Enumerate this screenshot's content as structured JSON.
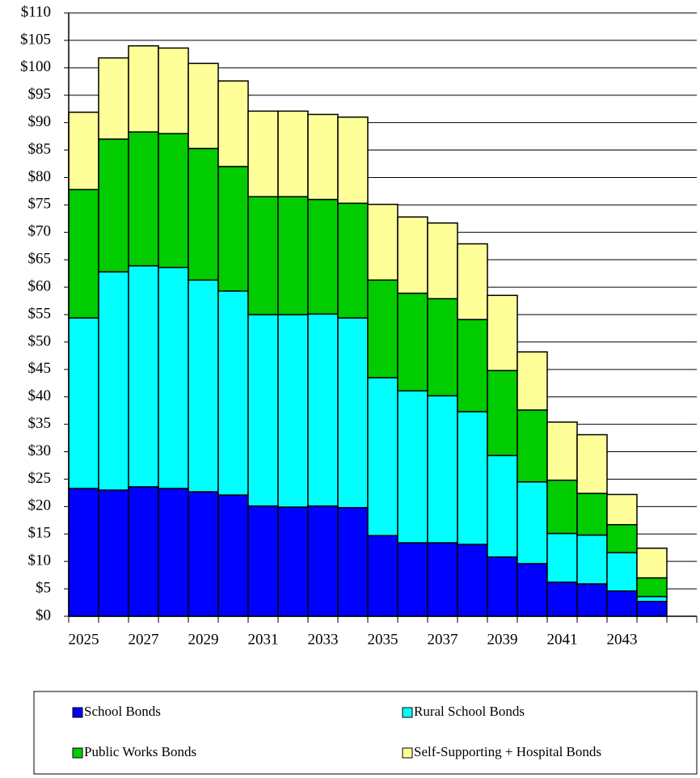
{
  "chart_data": {
    "type": "stacked-bar",
    "categories": [
      "2025",
      null,
      "2027",
      null,
      "2029",
      null,
      "2031",
      null,
      "2033",
      null,
      "2035",
      null,
      "2037",
      null,
      "2039",
      null,
      "2041",
      null,
      "2043",
      null
    ],
    "series": [
      {
        "name": "School Bonds",
        "color": "#0000ff",
        "values": [
          23.3,
          23.0,
          23.6,
          23.3,
          22.7,
          22.1,
          20.1,
          19.9,
          20.1,
          19.8,
          14.7,
          13.4,
          13.4,
          13.1,
          10.8,
          9.6,
          6.2,
          5.9,
          4.6,
          2.7
        ]
      },
      {
        "name": "Rural School Bonds",
        "color": "#00ffff",
        "values": [
          31.1,
          39.8,
          40.3,
          40.3,
          38.6,
          37.2,
          34.9,
          35.1,
          35.0,
          34.6,
          28.8,
          27.7,
          26.8,
          24.2,
          18.5,
          14.9,
          8.9,
          8.9,
          7.0,
          0.9
        ]
      },
      {
        "name": "Public Works Bonds",
        "color": "#00cc00",
        "values": [
          23.4,
          24.2,
          24.4,
          24.4,
          24.0,
          22.7,
          21.5,
          21.5,
          20.9,
          20.9,
          17.8,
          17.8,
          17.7,
          16.8,
          15.5,
          13.1,
          9.7,
          7.6,
          5.1,
          3.4
        ]
      },
      {
        "name": "Self-Supporting + Hospital Bonds",
        "color": "#ffff99",
        "values": [
          14.1,
          14.8,
          15.7,
          15.6,
          15.5,
          15.6,
          15.6,
          15.6,
          15.5,
          15.7,
          13.8,
          13.9,
          13.8,
          13.8,
          13.7,
          10.6,
          10.6,
          10.7,
          5.5,
          5.4
        ]
      }
    ],
    "ylim": [
      0,
      110
    ],
    "yticks": [
      {
        "value": 0,
        "label": "$0"
      },
      {
        "value": 5,
        "label": "$5"
      },
      {
        "value": 10,
        "label": "$10"
      },
      {
        "value": 15,
        "label": "$15"
      },
      {
        "value": 20,
        "label": "$20"
      },
      {
        "value": 25,
        "label": "$25"
      },
      {
        "value": 30,
        "label": "$30"
      },
      {
        "value": 35,
        "label": "$35"
      },
      {
        "value": 40,
        "label": "$40"
      },
      {
        "value": 45,
        "label": "$45"
      },
      {
        "value": 50,
        "label": "$50"
      },
      {
        "value": 55,
        "label": "$55"
      },
      {
        "value": 60,
        "label": "$60"
      },
      {
        "value": 65,
        "label": "$65"
      },
      {
        "value": 70,
        "label": "$70"
      },
      {
        "value": 75,
        "label": "$75"
      },
      {
        "value": 80,
        "label": "$80"
      },
      {
        "value": 85,
        "label": "$85"
      },
      {
        "value": 90,
        "label": "$90"
      },
      {
        "value": 95,
        "label": "$95"
      },
      {
        "value": 100,
        "label": "$100"
      },
      {
        "value": 105,
        "label": "$105"
      },
      {
        "value": 110,
        "label": "$110"
      }
    ],
    "grid": true,
    "legend": "bottom"
  }
}
